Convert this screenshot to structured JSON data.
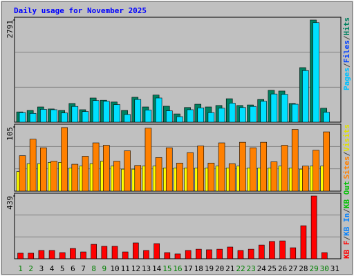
{
  "chart_data": {
    "type": "bar",
    "title": "Daily usage for November 2025",
    "categories": [
      "1",
      "2",
      "3",
      "4",
      "5",
      "6",
      "7",
      "8",
      "9",
      "10",
      "11",
      "12",
      "13",
      "14",
      "15",
      "16",
      "17",
      "18",
      "19",
      "20",
      "21",
      "22",
      "23",
      "24",
      "25",
      "26",
      "27",
      "28",
      "29",
      "30",
      "31"
    ],
    "category_colors": [
      "#008000",
      "#008000",
      "#000000",
      "#000000",
      "#000000",
      "#000000",
      "#000000",
      "#008000",
      "#008000",
      "#000000",
      "#000000",
      "#000000",
      "#000000",
      "#000000",
      "#008000",
      "#008000",
      "#000000",
      "#000000",
      "#000000",
      "#000000",
      "#000000",
      "#008000",
      "#008000",
      "#000000",
      "#000000",
      "#000000",
      "#000000",
      "#000000",
      "#008000",
      "#008000",
      "#000000"
    ],
    "legend_separator": "/",
    "panels": [
      {
        "ylim": [
          0,
          2791
        ],
        "yticks": [
          2791
        ],
        "legend": [
          {
            "text": "Pages",
            "color": "#00c0ff"
          },
          {
            "text": "Files",
            "color": "#0040ff"
          },
          {
            "text": "Hits",
            "color": "#008060"
          }
        ],
        "series": [
          {
            "color": "#008060",
            "values": [
              280,
              320,
              415,
              360,
              320,
              510,
              340,
              660,
              600,
              550,
              320,
              680,
              415,
              740,
              435,
              225,
              400,
              490,
              415,
              455,
              640,
              455,
              470,
              620,
              870,
              850,
              510,
              1490,
              2791,
              380,
              null
            ]
          },
          {
            "color": "#00e0ff",
            "values": [
              260,
              240,
              350,
              340,
              250,
              430,
              290,
              590,
              570,
              480,
              210,
              620,
              330,
              660,
              310,
              150,
              340,
              390,
              260,
              380,
              520,
              400,
              430,
              570,
              770,
              760,
              490,
              1410,
              2720,
              270,
              null
            ]
          }
        ]
      },
      {
        "ylim": [
          0,
          105
        ],
        "yticks": [
          105
        ],
        "legend": [
          {
            "text": "Sites",
            "color": "#ff8000"
          },
          {
            "text": "Visits",
            "color": "#e0e000"
          }
        ],
        "series": [
          {
            "color": "#ffff00",
            "values": [
              32,
              45,
              45,
              47,
              47,
              38,
              41,
              45,
              49,
              41,
              36,
              36,
              41,
              41,
              38,
              38,
              38,
              38,
              38,
              41,
              38,
              41,
              38,
              38,
              38,
              41,
              38,
              36,
              41,
              41,
              null
            ]
          },
          {
            "color": "#ff8000",
            "values": [
              58,
              85,
              71,
              49,
              104,
              44,
              57,
              79,
              75,
              49,
              66,
              42,
              103,
              55,
              71,
              46,
              63,
              74,
              46,
              79,
              45,
              80,
              71,
              80,
              48,
              75,
              101,
              41,
              67,
              97,
              null
            ]
          }
        ]
      },
      {
        "ylim": [
          0,
          439
        ],
        "yticks": [
          439
        ],
        "legend": [
          {
            "text": "KB F",
            "color": "#ff0000"
          },
          {
            "text": "KB In",
            "color": "#0080ff"
          },
          {
            "text": "KB Out",
            "color": "#00c000"
          }
        ],
        "series": [
          {
            "color": "#ff0000",
            "values": [
              39,
              39,
              58,
              58,
              43,
              72,
              48,
              101,
              87,
              87,
              48,
              111,
              58,
              106,
              43,
              34,
              58,
              67,
              63,
              67,
              82,
              58,
              67,
              96,
              121,
              125,
              77,
              231,
              439,
              43,
              null
            ]
          }
        ]
      }
    ]
  }
}
